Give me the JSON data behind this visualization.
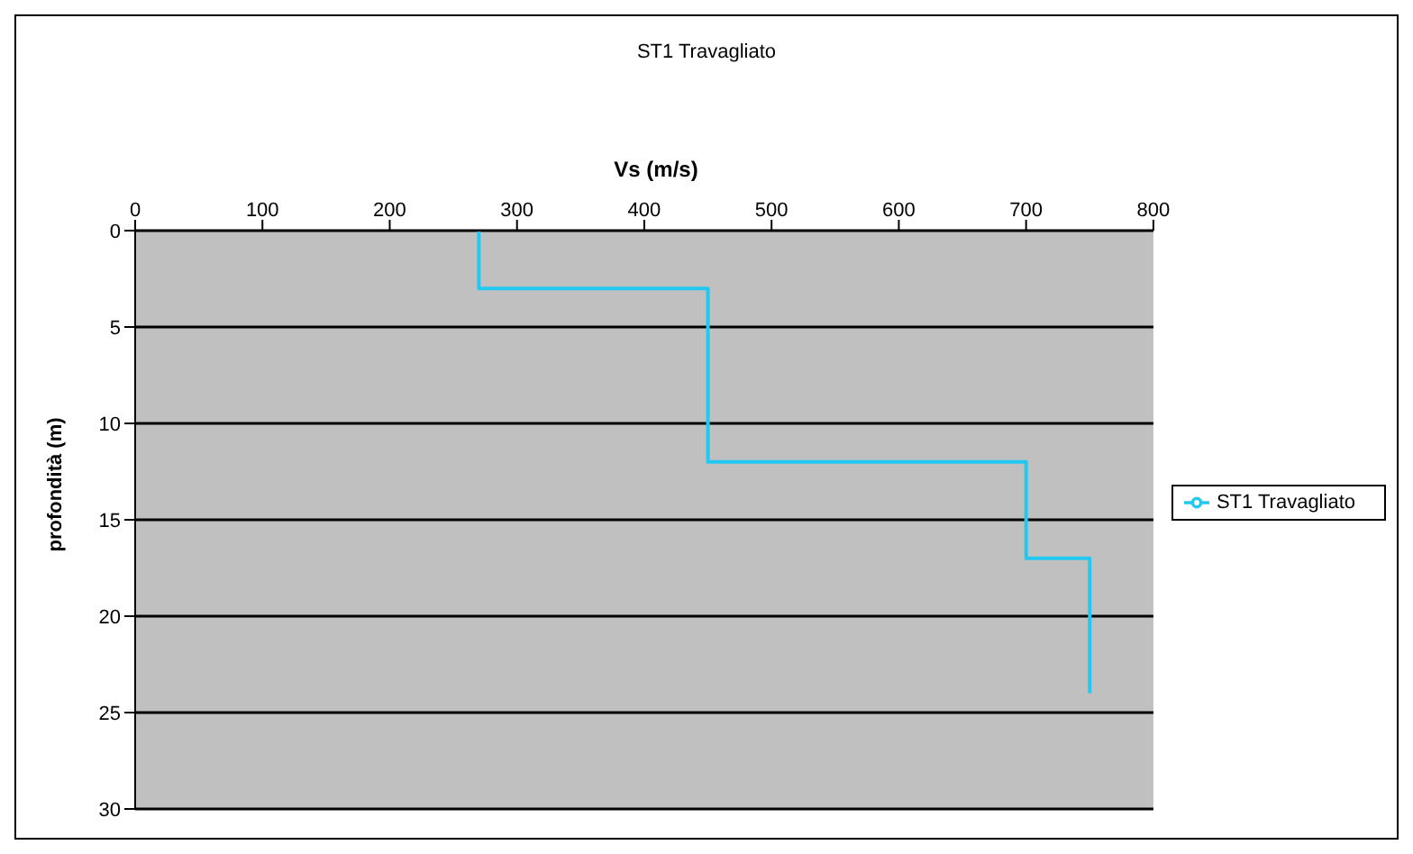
{
  "chart_data": {
    "type": "line",
    "title": "ST1 Travagliato",
    "xlabel": "Vs (m/s)",
    "ylabel": "profondità (m)",
    "x": [
      270,
      270,
      450,
      450,
      700,
      700,
      750,
      750
    ],
    "series": [
      {
        "name": "ST1 Travagliato",
        "color": "#22c8f0",
        "values": [
          0,
          3,
          3,
          12,
          12,
          17,
          17,
          24
        ]
      }
    ],
    "xlim": [
      0,
      800
    ],
    "xticks": [
      0,
      100,
      200,
      300,
      400,
      500,
      600,
      700,
      800
    ],
    "ylim": [
      30,
      0
    ],
    "yticks": [
      0,
      5,
      10,
      15,
      20,
      25,
      30
    ],
    "grid": "y",
    "legend": "right",
    "marker": "none",
    "line_style": "solid"
  }
}
